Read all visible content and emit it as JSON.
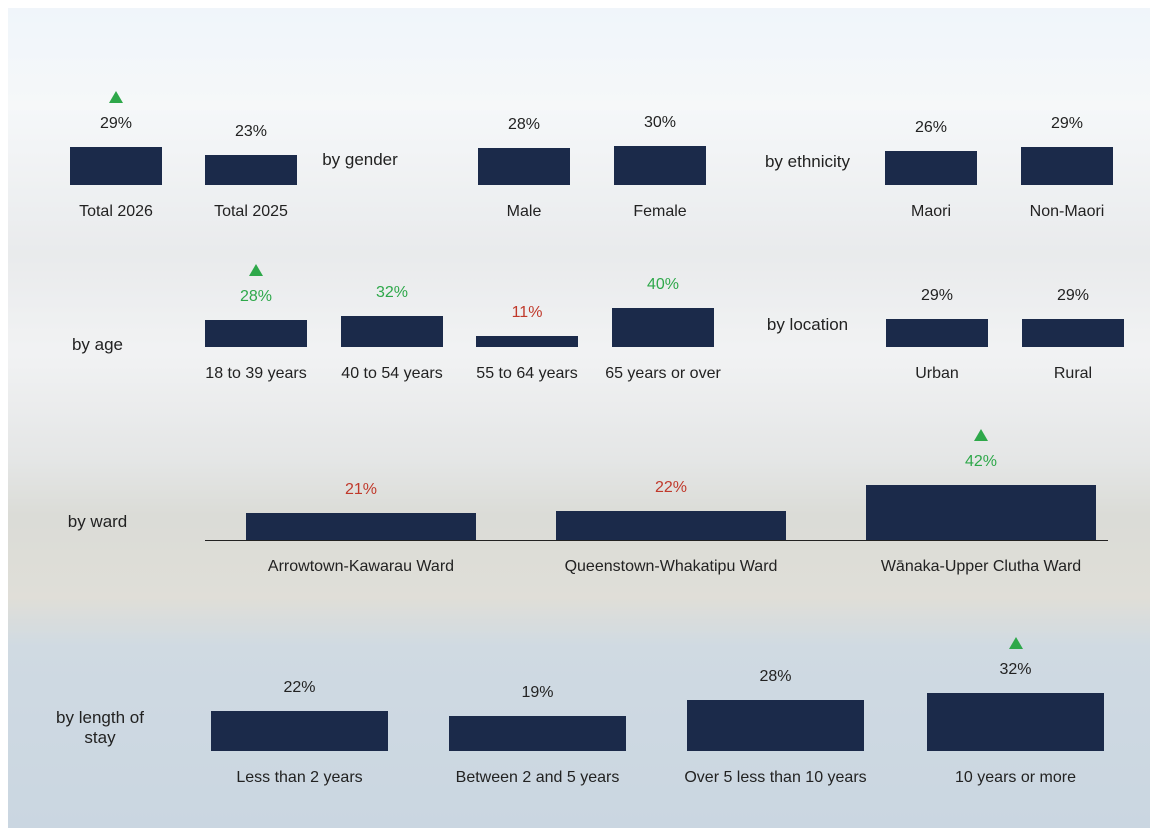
{
  "chart_data": [
    {
      "type": "bar",
      "categories": [
        "Total 2026",
        "Total 2025"
      ],
      "values": [
        29,
        23
      ],
      "value_labels": [
        "29%",
        "23%"
      ],
      "label_colors": [
        "#222222",
        "#222222"
      ],
      "up_arrows": [
        true,
        false
      ],
      "color": "#1b2a4a"
    },
    {
      "type": "bar",
      "title": "by gender",
      "categories": [
        "Male",
        "Female"
      ],
      "values": [
        28,
        30
      ],
      "value_labels": [
        "28%",
        "30%"
      ],
      "label_colors": [
        "#222222",
        "#222222"
      ],
      "up_arrows": [
        false,
        false
      ],
      "color": "#1b2a4a"
    },
    {
      "type": "bar",
      "title": "by ethnicity",
      "categories": [
        "Maori",
        "Non-Maori"
      ],
      "values": [
        26,
        29
      ],
      "value_labels": [
        "26%",
        "29%"
      ],
      "label_colors": [
        "#222222",
        "#222222"
      ],
      "up_arrows": [
        false,
        false
      ],
      "color": "#1b2a4a"
    },
    {
      "type": "bar",
      "title": "by age",
      "categories": [
        "18 to 39 years",
        "40 to 54 years",
        "55 to 64 years",
        "65 years or over"
      ],
      "values": [
        28,
        32,
        11,
        40
      ],
      "value_labels": [
        "28%",
        "32%",
        "11%",
        "40%"
      ],
      "label_colors": [
        "#2ea84a",
        "#2ea84a",
        "#c0392b",
        "#2ea84a"
      ],
      "up_arrows": [
        true,
        false,
        false,
        false
      ],
      "color": "#1b2a4a"
    },
    {
      "type": "bar",
      "title": "by location",
      "categories": [
        "Urban",
        "Rural"
      ],
      "values": [
        29,
        29
      ],
      "value_labels": [
        "29%",
        "29%"
      ],
      "label_colors": [
        "#222222",
        "#222222"
      ],
      "up_arrows": [
        false,
        false
      ],
      "color": "#1b2a4a"
    },
    {
      "type": "bar",
      "title": "by ward",
      "categories": [
        "Arrowtown-Kawarau Ward",
        "Queenstown-Whakatipu Ward",
        "Wānaka-Upper Clutha Ward"
      ],
      "values": [
        21,
        22,
        42
      ],
      "value_labels": [
        "21%",
        "22%",
        "42%"
      ],
      "label_colors": [
        "#c0392b",
        "#c0392b",
        "#2ea84a"
      ],
      "up_arrows": [
        false,
        false,
        true
      ],
      "color": "#1b2a4a",
      "axis_line": true
    },
    {
      "type": "bar",
      "title": "by length of stay",
      "categories": [
        "Less than 2 years",
        "Between 2 and 5 years",
        "Over 5 less than 10 years",
        "10 years or more"
      ],
      "values": [
        22,
        19,
        28,
        32
      ],
      "value_labels": [
        "22%",
        "19%",
        "28%",
        "32%"
      ],
      "label_colors": [
        "#222222",
        "#222222",
        "#222222",
        "#222222"
      ],
      "up_arrows": [
        false,
        false,
        false,
        true
      ],
      "color": "#1b2a4a"
    }
  ]
}
